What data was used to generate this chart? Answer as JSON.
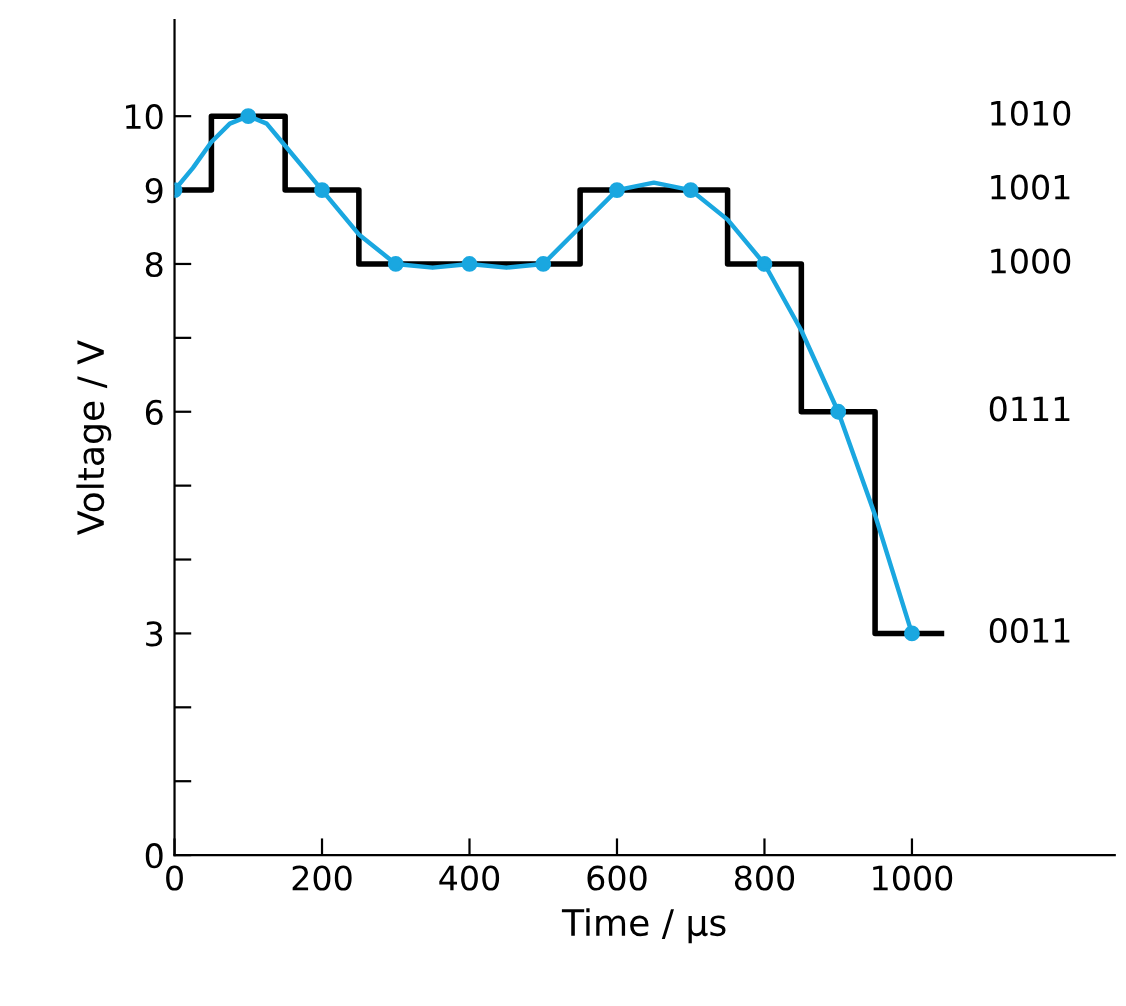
{
  "chart_data": {
    "type": "step",
    "xlabel": "Time / µs",
    "ylabel": "Voltage / V",
    "xlim": [
      0,
      1275
    ],
    "ylim": [
      0,
      11.3
    ],
    "xticks": [
      0,
      200,
      400,
      600,
      800,
      1000
    ],
    "yticks": [
      0,
      {
        "value": 1,
        "label": null
      },
      {
        "value": 2,
        "label": null
      },
      3,
      {
        "value": 4,
        "label": null
      },
      {
        "value": 5,
        "label": null
      },
      6,
      {
        "value": 7,
        "label": null
      },
      8,
      9,
      10
    ],
    "grid": false,
    "legend": false,
    "series": [
      {
        "color": "#000000",
        "x": [
          0,
          50,
          150,
          250,
          550,
          750,
          850,
          950,
          1040
        ],
        "values": [
          9,
          10,
          9,
          8,
          9,
          8,
          6,
          3,
          3
        ]
      },
      {
        "type": "line",
        "color": "#1aa7e0",
        "x": [
          0,
          25,
          50,
          75,
          100,
          125,
          150,
          175,
          200,
          250,
          300,
          350,
          400,
          450,
          500,
          550,
          600,
          650,
          700,
          750,
          800,
          850,
          900,
          950,
          1000
        ],
        "values": [
          9,
          9.3,
          9.65,
          9.9,
          10,
          9.9,
          9.6,
          9.3,
          9,
          8.4,
          8,
          7.95,
          8,
          7.95,
          8,
          8.5,
          9,
          9.1,
          9,
          8.6,
          8,
          7.1,
          6,
          4.6,
          3
        ]
      },
      {
        "type": "scatter",
        "color": "#1aa7e0",
        "marker": "circle",
        "x": [
          0,
          100,
          200,
          300,
          400,
          500,
          600,
          700,
          800,
          900,
          1000
        ],
        "values": [
          9,
          10,
          9,
          8,
          8,
          8,
          9,
          9,
          8,
          6,
          3
        ]
      }
    ],
    "annotations": [
      "1010",
      "1001",
      "1000",
      "0111",
      "0011"
    ]
  }
}
